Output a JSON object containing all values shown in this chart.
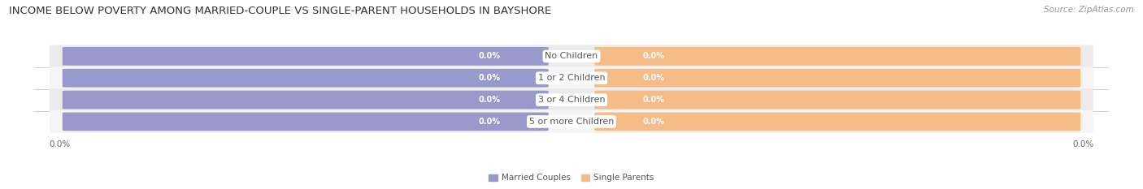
{
  "title": "INCOME BELOW POVERTY AMONG MARRIED-COUPLE VS SINGLE-PARENT HOUSEHOLDS IN BAYSHORE",
  "source": "Source: ZipAtlas.com",
  "categories": [
    "No Children",
    "1 or 2 Children",
    "3 or 4 Children",
    "5 or more Children"
  ],
  "married_values": [
    0.0,
    0.0,
    0.0,
    0.0
  ],
  "single_values": [
    0.0,
    0.0,
    0.0,
    0.0
  ],
  "married_color": "#9999cc",
  "single_color": "#f5bc87",
  "row_bg_even": "#ebebeb",
  "row_bg_odd": "#f5f5f5",
  "legend_married": "Married Couples",
  "legend_single": "Single Parents",
  "title_fontsize": 9.5,
  "source_fontsize": 7.5,
  "label_fontsize": 7,
  "category_fontsize": 8,
  "tick_fontsize": 7.5,
  "axis_label_color": "#666666",
  "background_color": "#ffffff",
  "bar_label_color": "#ffffff",
  "category_label_color": "#555555"
}
